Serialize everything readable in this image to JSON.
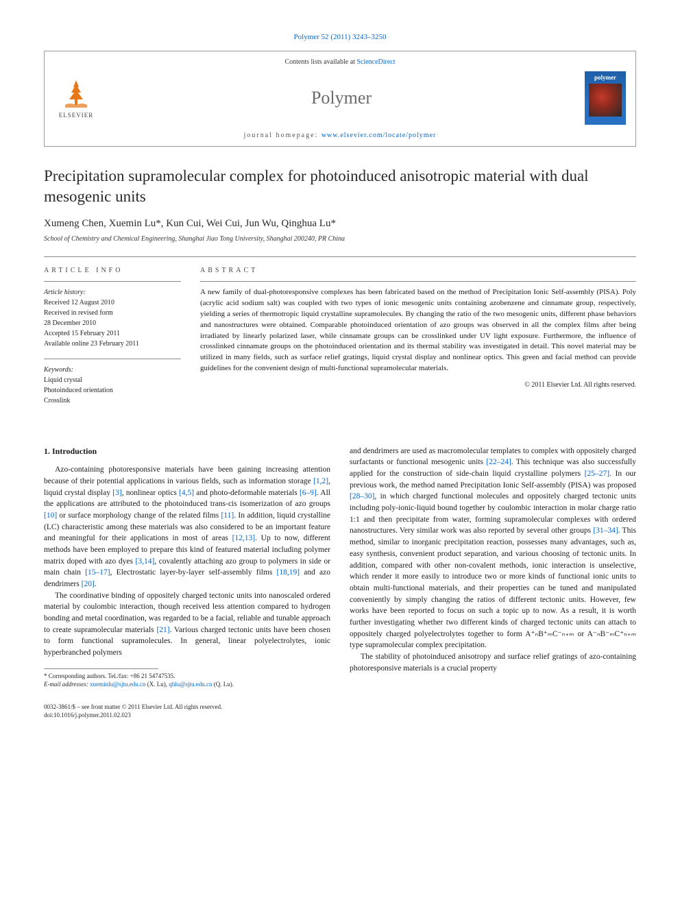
{
  "citation": "Polymer 52 (2011) 3243–3250",
  "header": {
    "contents_text": "Contents lists available at ",
    "contents_link": "ScienceDirect",
    "journal_name": "Polymer",
    "homepage_label": "journal homepage: ",
    "homepage_url": "www.elsevier.com/locate/polymer",
    "publisher": "ELSEVIER",
    "cover_title": "polymer"
  },
  "article": {
    "title": "Precipitation supramolecular complex for photoinduced anisotropic material with dual mesogenic units",
    "authors": "Xumeng Chen, Xuemin Lu*, Kun Cui, Wei Cui, Jun Wu, Qinghua Lu*",
    "affiliation": "School of Chemistry and Chemical Engineering, Shanghai Jiao Tong University, Shanghai 200240, PR China"
  },
  "info": {
    "label": "ARTICLE INFO",
    "history_hdr": "Article history:",
    "history": [
      "Received 12 August 2010",
      "Received in revised form",
      "28 December 2010",
      "Accepted 15 February 2011",
      "Available online 23 February 2011"
    ],
    "keywords_hdr": "Keywords:",
    "keywords": [
      "Liquid crystal",
      "Photoinduced orientation",
      "Crosslink"
    ]
  },
  "abstract": {
    "label": "ABSTRACT",
    "text": "A new family of dual-photoresponsive complexes has been fabricated based on the method of Precipitation Ionic Self-assembly (PISA). Poly (acrylic acid sodium salt) was coupled with two types of ionic mesogenic units containing azobenzene and cinnamate group, respectively, yielding a series of thermotropic liquid crystalline supramolecules. By changing the ratio of the two mesogenic units, different phase behaviors and nanostructures were obtained. Comparable photoinduced orientation of azo groups was observed in all the complex films after being irradiated by linearly polarized laser, while cinnamate groups can be crosslinked under UV light exposure. Furthermore, the influence of crosslinked cinnamate groups on the photoinduced orientation and its thermal stability was investigated in detail. This novel material may be utilized in many fields, such as surface relief gratings, liquid crystal display and nonlinear optics. This green and facial method can provide guidelines for the convenient design of multi-functional supramolecular materials.",
    "copyright": "© 2011 Elsevier Ltd. All rights reserved."
  },
  "body": {
    "section_heading": "1. Introduction",
    "col1_p1": "Azo-containing photoresponsive materials have been gaining increasing attention because of their potential applications in various fields, such as information storage [1,2], liquid crystal display [3], nonlinear optics [4,5] and photo-deformable materials [6–9]. All the applications are attributed to the photoinduced trans-cis isomerization of azo groups [10] or surface morphology change of the related films [11]. In addition, liquid crystalline (LC) characteristic among these materials was also considered to be an important feature and meaningful for their applications in most of areas [12,13]. Up to now, different methods have been employed to prepare this kind of featured material including polymer matrix doped with azo dyes [3,14], covalently attaching azo group to polymers in side or main chain [15–17], Electrostatic layer-by-layer self-assembly films [18,19] and azo dendrimers [20].",
    "col1_p2": "The coordinative binding of oppositely charged tectonic units into nanoscaled ordered material by coulombic interaction, though received less attention compared to hydrogen bonding and metal coordination, was regarded to be a facial, reliable and tunable approach to create supramolecular materials [21]. Various charged tectonic units have been chosen to form functional supramolecules. In general, linear polyelectrolytes, ionic hyperbranched polymers",
    "col2_p1": "and dendrimers are used as macromolecular templates to complex with oppositely charged surfactants or functional mesogenic units [22–24]. This technique was also successfully applied for the construction of side-chain liquid crystalline polymers [25–27]. In our previous work, the method named Precipitation Ionic Self-assembly (PISA) was proposed [28–30], in which charged functional molecules and oppositely charged tectonic units including poly-ionic-liquid bound together by coulombic interaction in molar charge ratio 1:1 and then precipitate from water, forming supramolecular complexes with ordered nanostructures. Very similar work was also reported by several other groups [31–34]. This method, similar to inorganic precipitation reaction, possesses many advantages, such as, easy synthesis, convenient product separation, and various choosing of tectonic units. In addition, compared with other non-covalent methods, ionic interaction is unselective, which render it more easily to introduce two or more kinds of functional ionic units to obtain multi-functional materials, and their properties can be tuned and manipulated conveniently by simply changing the ratios of different tectonic units. However, few works have been reported to focus on such a topic up to now. As a result, it is worth further investigating whether two different kinds of charged tectonic units can attach to oppositely charged polyelectrolytes together to form A⁺ₙB⁺ₘC⁻ₙ₊ₘ or A⁻ₙB⁻ₘC⁺ₙ₊ₘ type supramolecular complex precipitation.",
    "col2_p2": "The stability of photoinduced anisotropy and surface relief gratings of azo-containing photoresponsive materials is a crucial property"
  },
  "footnote": {
    "corresponding": "* Corresponding authors. Tel./fax: +86 21 54747535.",
    "email_label": "E-mail addresses: ",
    "email1": "xueminlu@sjtu.edu.cn",
    "email1_who": " (X. Lu), ",
    "email2": "qhlu@sjtu.edu.cn",
    "email2_who": " (Q. Lu)."
  },
  "bottom": {
    "issn": "0032-3861/$ – see front matter © 2011 Elsevier Ltd. All rights reserved.",
    "doi": "doi:10.1016/j.polymer.2011.02.023"
  },
  "colors": {
    "link": "#0066cc",
    "text": "#1a1a1a",
    "rule": "#888888",
    "cover_bg": "#2870c4"
  }
}
